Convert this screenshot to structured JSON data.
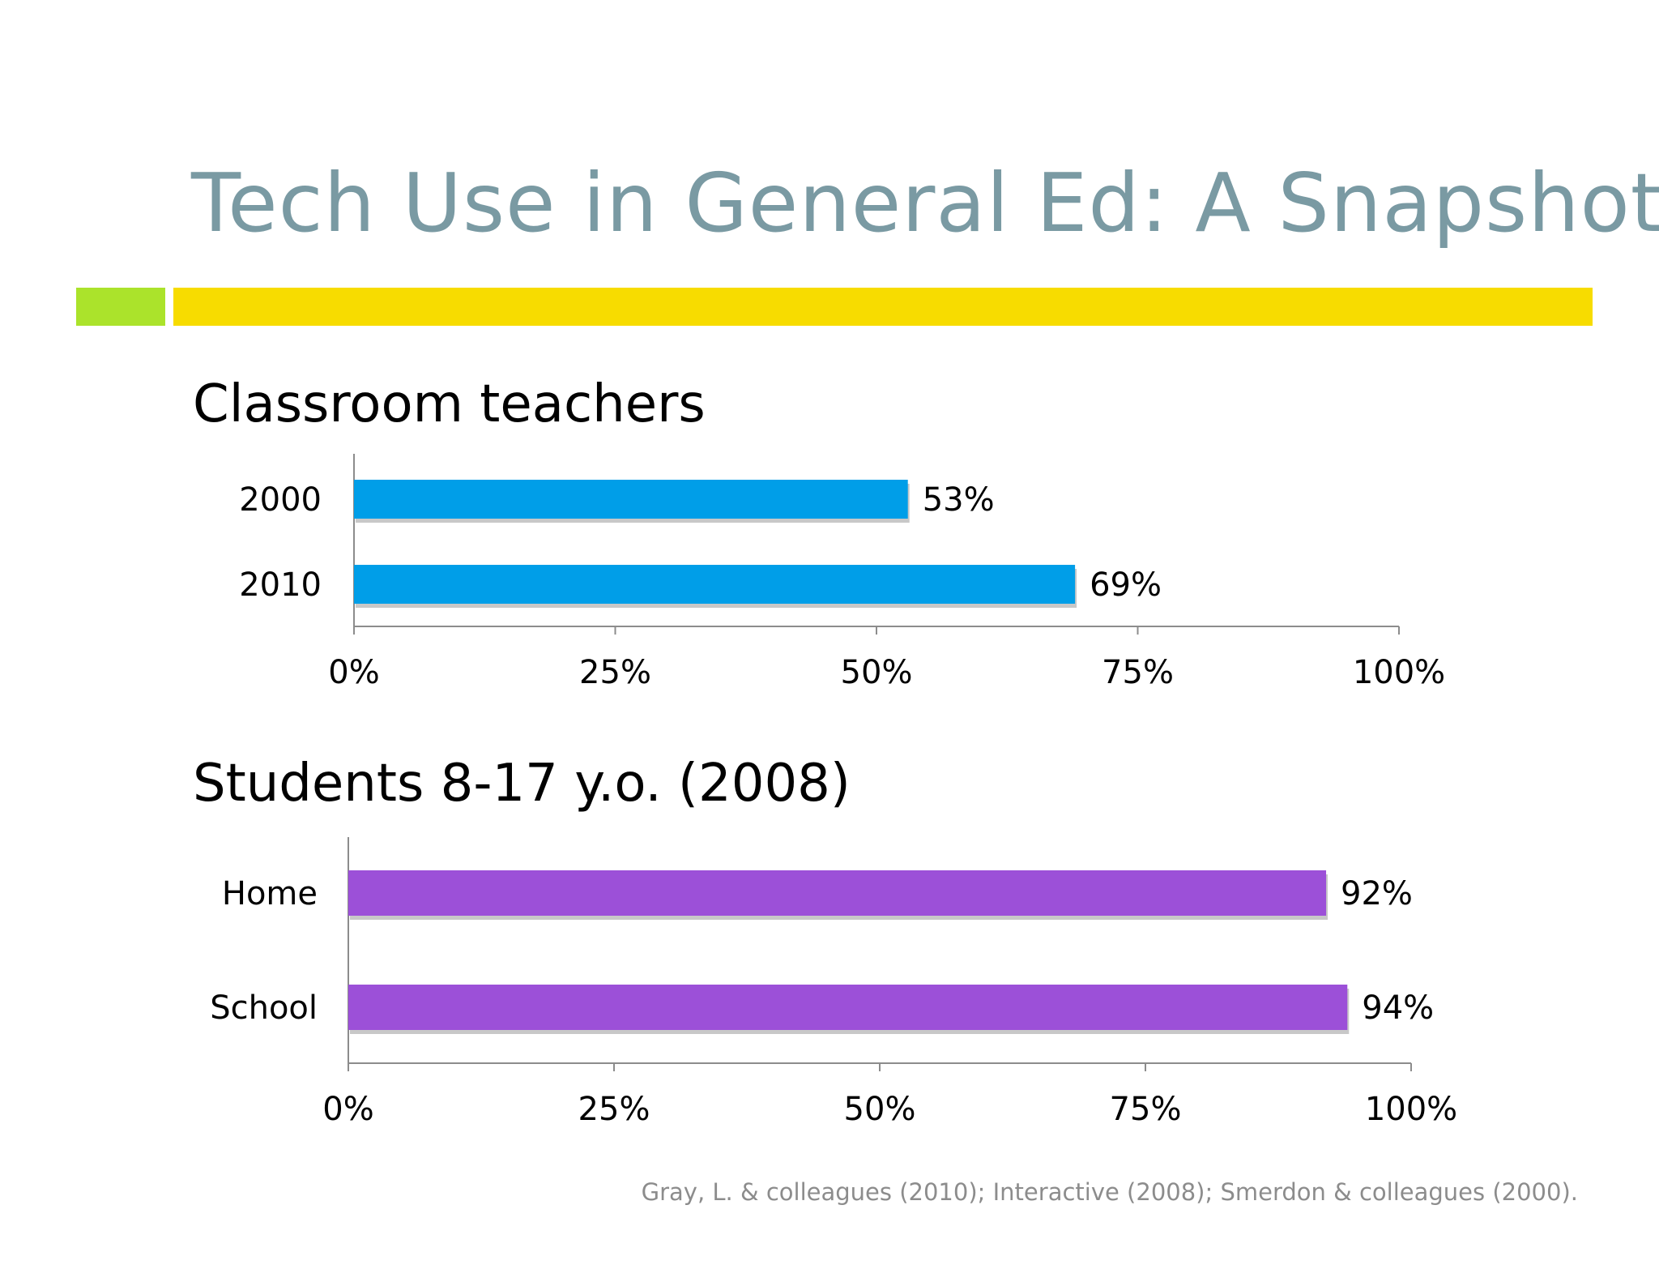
{
  "slide": {
    "title": "Tech Use in General Ed: A Snapshot",
    "citation": "Gray, L. & colleagues (2010); Interactive (2008); Smerdon & colleagues (2000).",
    "colors": {
      "title": "#7a9aa3",
      "accent_green": "#abe32b",
      "accent_yellow": "#f7dc00"
    }
  },
  "chart_data": [
    {
      "type": "bar",
      "orientation": "horizontal",
      "title": "Classroom teachers",
      "categories": [
        "2000",
        "2010"
      ],
      "values": [
        53,
        69
      ],
      "value_labels": [
        "53%",
        "69%"
      ],
      "xlim": [
        0,
        100
      ],
      "ticks": [
        0,
        25,
        50,
        75,
        100
      ],
      "tick_labels": [
        "0%",
        "25%",
        "50%",
        "75%",
        "100%"
      ],
      "color": "#009ee8",
      "grid": false,
      "legend": "none"
    },
    {
      "type": "bar",
      "orientation": "horizontal",
      "title": "Students 8-17 y.o. (2008)",
      "categories": [
        "Home",
        "School"
      ],
      "values": [
        92,
        94
      ],
      "value_labels": [
        "92%",
        "94%"
      ],
      "xlim": [
        0,
        100
      ],
      "ticks": [
        0,
        25,
        50,
        75,
        100
      ],
      "tick_labels": [
        "0%",
        "25%",
        "50%",
        "75%",
        "100%"
      ],
      "color": "#9c50d8",
      "grid": false,
      "legend": "none"
    }
  ]
}
